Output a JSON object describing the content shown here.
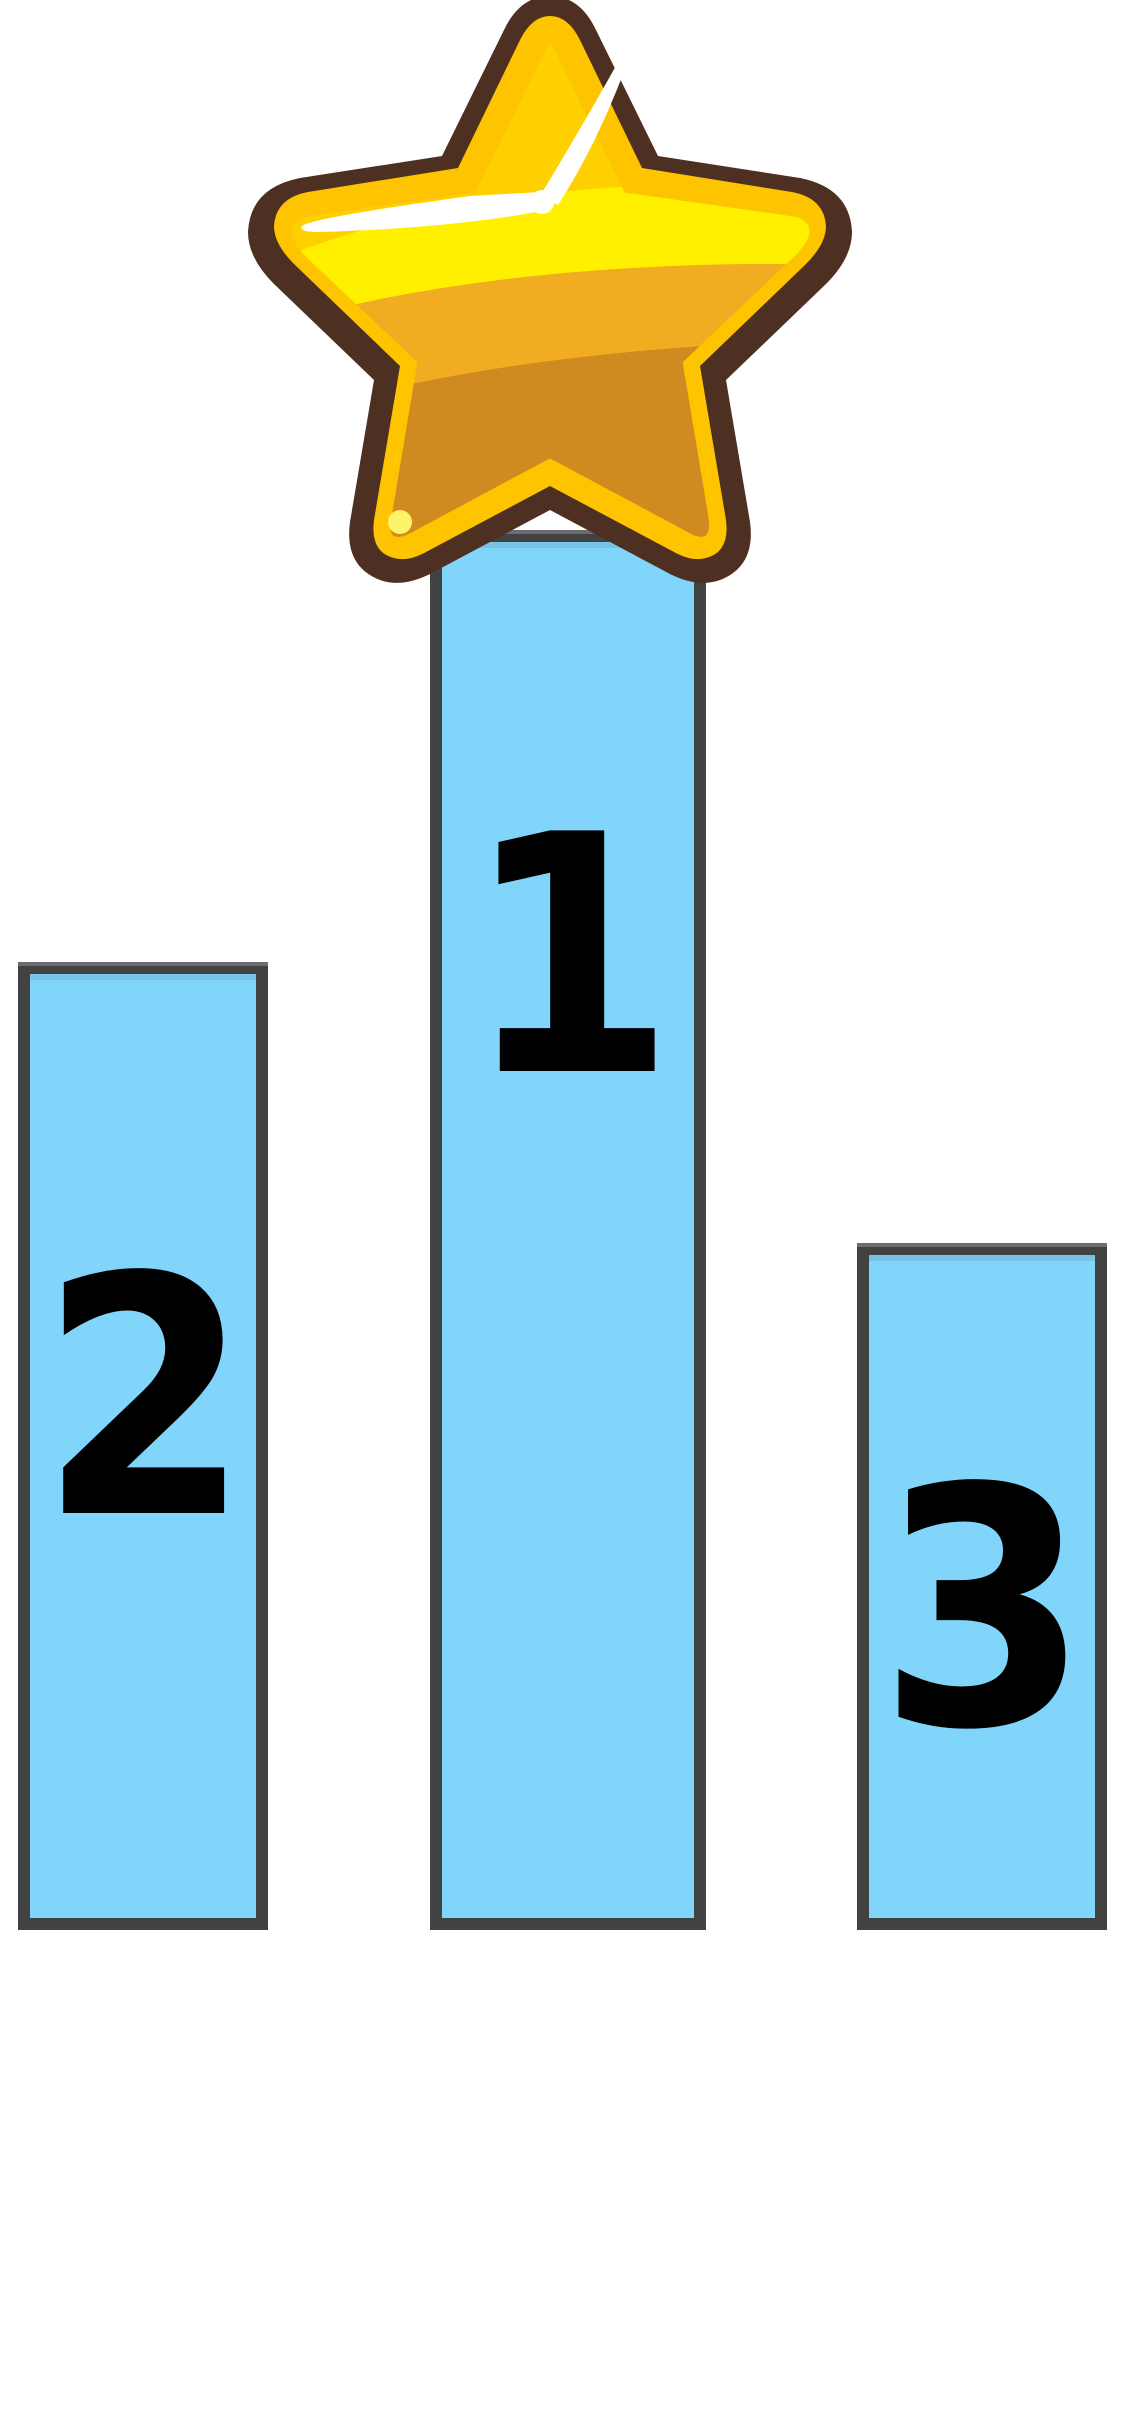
{
  "podiums": [
    {
      "rank_label": "1",
      "fill": "#81d4fa",
      "border": "#424242"
    },
    {
      "rank_label": "2",
      "fill": "#81d4fa",
      "border": "#424242"
    },
    {
      "rank_label": "3",
      "fill": "#81d4fa",
      "border": "#424242"
    }
  ],
  "icons": {
    "star": "star-icon"
  },
  "colors": {
    "star_outline": "#4e3022",
    "star_rim": "#ffc400",
    "star_top": "#ffd000",
    "star_band_yellow": "#fff000",
    "star_band_mid": "#f2ac22",
    "star_bottom": "#cf8a20"
  }
}
